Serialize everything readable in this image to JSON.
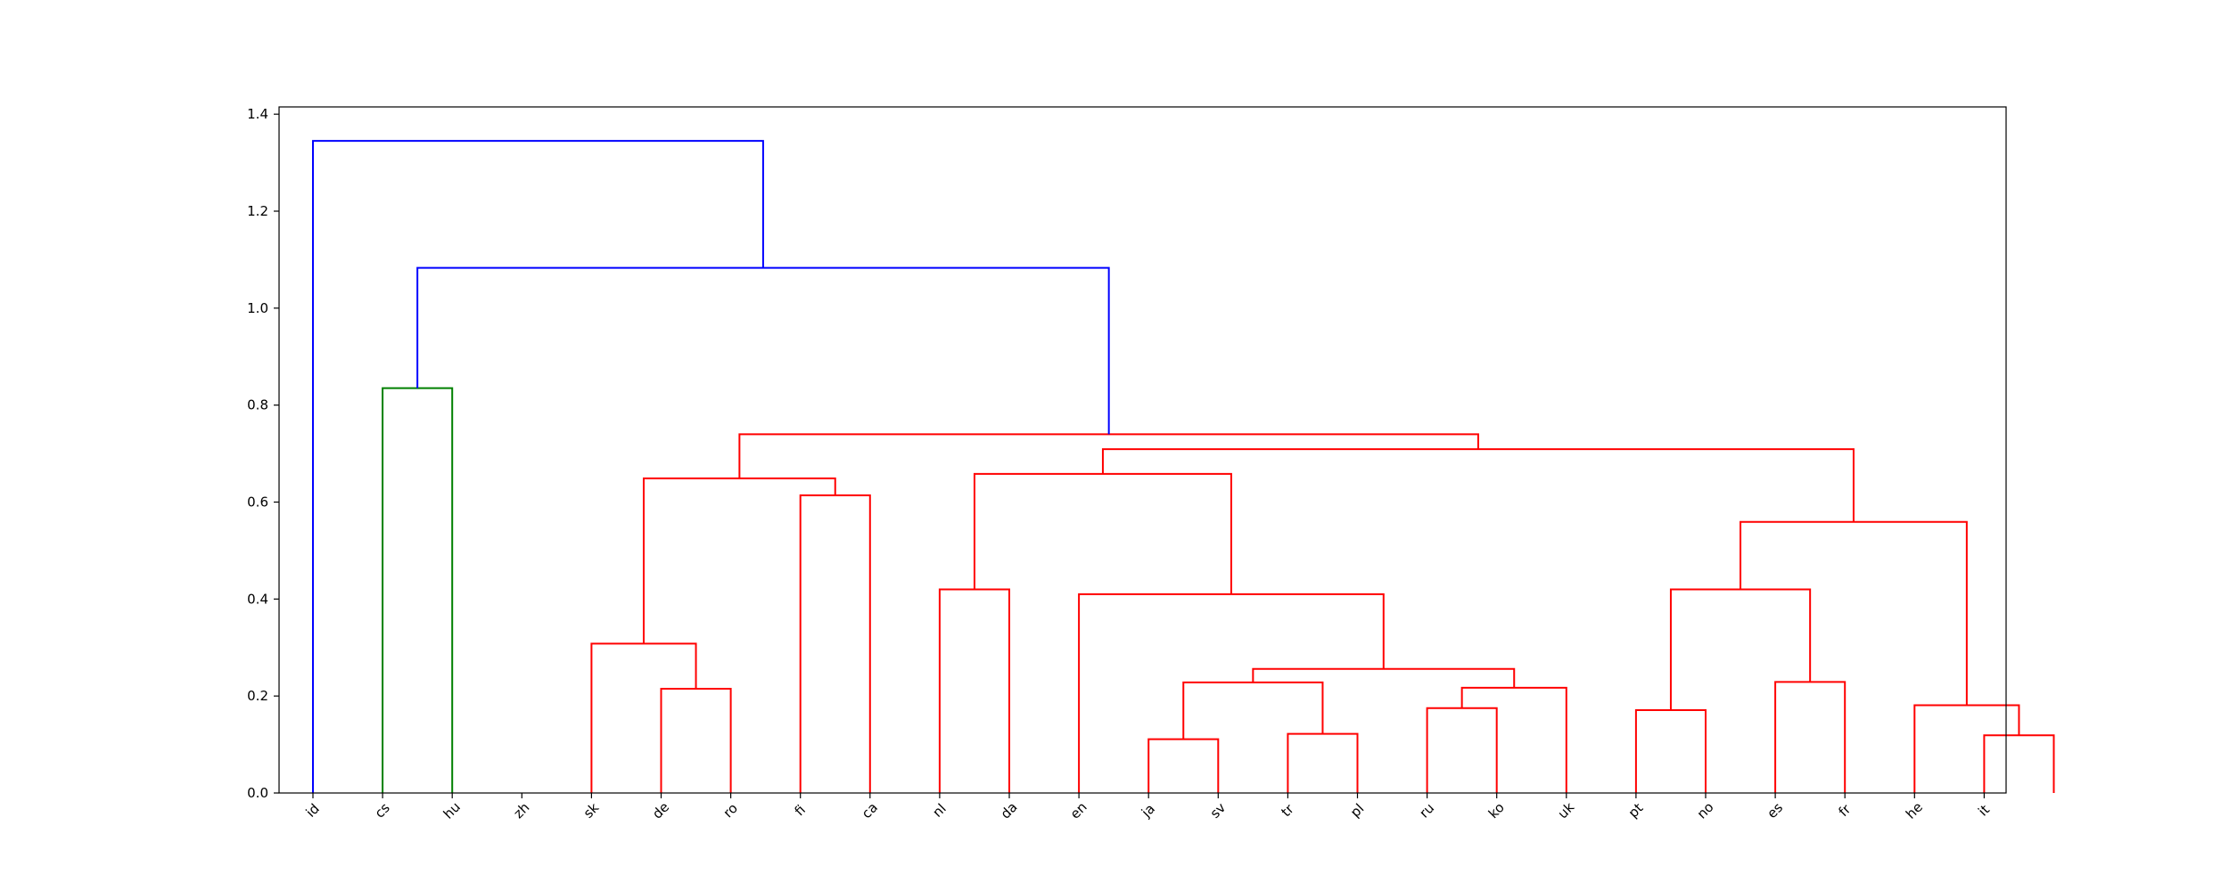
{
  "chart_data": {
    "type": "dendrogram",
    "title": "",
    "xlabel": "",
    "ylabel": "",
    "ylim": [
      0,
      1.415
    ],
    "yticks": [
      0.0,
      0.2,
      0.4,
      0.6,
      0.8,
      1.0,
      1.2,
      1.4
    ],
    "ytick_labels": [
      "0.0",
      "0.2",
      "0.4",
      "0.6",
      "0.8",
      "1.0",
      "1.2",
      "1.4"
    ],
    "leaves": [
      "id",
      "cs",
      "hu",
      "zh",
      "sk",
      "de",
      "ro",
      "fi",
      "ca",
      "nl",
      "da",
      "en",
      "ja",
      "sv",
      "tr",
      "pl",
      "ru",
      "ko",
      "uk",
      "pt",
      "no",
      "es",
      "fr",
      "he",
      "it"
    ],
    "colors": {
      "above_threshold": "#0000ff",
      "cluster_green": "#008000",
      "cluster_red": "#ff0000",
      "axes": "#000000"
    },
    "links": [
      {
        "left": 0,
        "right": 1,
        "height": 0.835,
        "color": "cluster_green"
      },
      {
        "left": 4,
        "right": 5,
        "height": 0.215,
        "color": "cluster_red"
      },
      {
        "left": 3,
        "right": 4.5,
        "height": 0.308,
        "color": "cluster_red"
      },
      {
        "left": 6,
        "right": 7,
        "height": 0.614,
        "color": "cluster_red"
      },
      {
        "left": 3.75,
        "right": 6.5,
        "height": 0.649,
        "color": "cluster_red"
      },
      {
        "left": 8,
        "right": 9,
        "height": 0.42,
        "color": "cluster_red"
      },
      {
        "left": 11,
        "right": 12,
        "height": 0.111,
        "color": "cluster_red"
      },
      {
        "left": 13,
        "right": 14,
        "height": 0.122,
        "color": "cluster_red"
      },
      {
        "left": 11.5,
        "right": 13.5,
        "height": 0.228,
        "color": "cluster_red"
      },
      {
        "left": 15,
        "right": 16,
        "height": 0.175,
        "color": "cluster_red"
      },
      {
        "left": 15.5,
        "right": 17,
        "height": 0.217,
        "color": "cluster_red"
      },
      {
        "left": 12.5,
        "right": 16.25,
        "height": 0.256,
        "color": "cluster_red"
      },
      {
        "left": 10,
        "right": 14.375,
        "height": 0.41,
        "color": "cluster_red"
      },
      {
        "left": 8.5,
        "right": 12.1875,
        "height": 0.658,
        "color": "cluster_red"
      },
      {
        "left": 18,
        "right": 19,
        "height": 0.171,
        "color": "cluster_red"
      },
      {
        "left": 20,
        "right": 21,
        "height": 0.229,
        "color": "cluster_red"
      },
      {
        "left": 18.5,
        "right": 20.5,
        "height": 0.42,
        "color": "cluster_red"
      },
      {
        "left": 23,
        "right": 24,
        "height": 0.119,
        "color": "cluster_red"
      },
      {
        "left": 22,
        "right": 23.5,
        "height": 0.181,
        "color": "cluster_red"
      },
      {
        "left": 19.5,
        "right": 22.75,
        "height": 0.559,
        "color": "cluster_red"
      },
      {
        "left": 10.34375,
        "right": 21.125,
        "height": 0.709,
        "color": "cluster_red"
      },
      {
        "left": 5.125,
        "right": 15.734375,
        "height": 0.74,
        "color": "cluster_red"
      },
      {
        "left": 0.5,
        "right": 10.4296875,
        "height": 1.083,
        "color": "above_threshold"
      },
      {
        "left": -1,
        "right": 5.46484375,
        "height": 1.345,
        "color": "above_threshold"
      }
    ]
  }
}
